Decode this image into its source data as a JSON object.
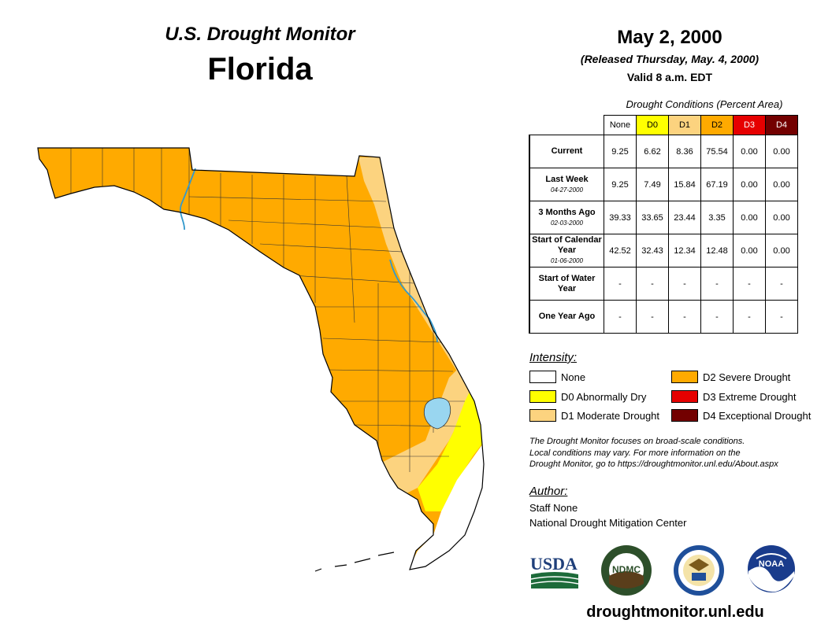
{
  "header": {
    "title": "U.S. Drought Monitor",
    "state": "Florida",
    "date": "May 2, 2000",
    "released": "(Released Thursday, May. 4, 2000)",
    "valid": "Valid 8 a.m. EDT"
  },
  "table": {
    "caption": "Drought Conditions (Percent Area)",
    "columns": [
      "None",
      "D0",
      "D1",
      "D2",
      "D3",
      "D4"
    ],
    "rows": [
      {
        "label": "Current",
        "date": "",
        "values": [
          "9.25",
          "6.62",
          "8.36",
          "75.54",
          "0.00",
          "0.00"
        ]
      },
      {
        "label": "Last Week",
        "date": "04-27-2000",
        "values": [
          "9.25",
          "7.49",
          "15.84",
          "67.19",
          "0.00",
          "0.00"
        ]
      },
      {
        "label": "3 Months Ago",
        "date": "02-03-2000",
        "values": [
          "39.33",
          "33.65",
          "23.44",
          "3.35",
          "0.00",
          "0.00"
        ]
      },
      {
        "label": "Start of Calendar Year",
        "date": "01-06-2000",
        "values": [
          "42.52",
          "32.43",
          "12.34",
          "12.48",
          "0.00",
          "0.00"
        ]
      },
      {
        "label": "Start of Water Year",
        "date": "",
        "values": [
          "-",
          "-",
          "-",
          "-",
          "-",
          "-"
        ]
      },
      {
        "label": "One Year Ago",
        "date": "",
        "values": [
          "-",
          "-",
          "-",
          "-",
          "-",
          "-"
        ]
      }
    ]
  },
  "legend": {
    "title": "Intensity:",
    "items": [
      {
        "label": "None",
        "color": "#ffffff"
      },
      {
        "label": "D0 Abnormally Dry",
        "color": "#ffff00"
      },
      {
        "label": "D1 Moderate Drought",
        "color": "#fcd37f"
      },
      {
        "label": "D2 Severe Drought",
        "color": "#ffaa00"
      },
      {
        "label": "D3 Extreme Drought",
        "color": "#e60000"
      },
      {
        "label": "D4 Exceptional Drought",
        "color": "#730000"
      }
    ]
  },
  "colors": {
    "none": "#ffffff",
    "d0": "#ffff00",
    "d1": "#fcd37f",
    "d2": "#ffaa00",
    "d3": "#e60000",
    "d4": "#730000",
    "water": "#99d6f0",
    "river": "#3399cc"
  },
  "disclaimer": {
    "line1": "The Drought Monitor focuses on broad-scale conditions.",
    "line2": "Local conditions may vary. For more information on the",
    "line3": "Drought Monitor, go to https://droughtmonitor.unl.edu/About.aspx"
  },
  "author": {
    "title": "Author:",
    "name": "Staff None",
    "org": "National Drought Mitigation Center"
  },
  "logos": {
    "usda": "USDA",
    "ndmc": "NDMC",
    "noaa": "NOAA"
  },
  "website": "droughtmonitor.unl.edu"
}
